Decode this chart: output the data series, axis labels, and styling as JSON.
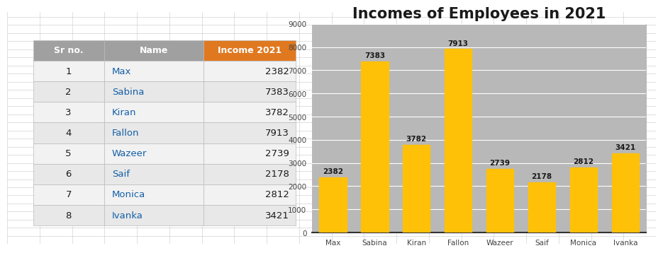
{
  "title": "Incomes of Employees in 2021",
  "names": [
    "Max",
    "Sabina",
    "Kiran",
    "Fallon",
    "Wazeer",
    "Saif",
    "Monica",
    "Ivanka"
  ],
  "sr_nos": [
    1,
    2,
    3,
    4,
    5,
    6,
    7,
    8
  ],
  "incomes": [
    2382,
    7383,
    3782,
    7913,
    2739,
    2178,
    2812,
    3421
  ],
  "bar_color": "#FFC107",
  "title_fontsize": 15,
  "title_color": "#1a1a1a",
  "ylim": [
    0,
    9000
  ],
  "yticks": [
    0,
    1000,
    2000,
    3000,
    4000,
    5000,
    6000,
    7000,
    8000,
    9000
  ],
  "table_header_bg_sr": "#A0A0A0",
  "table_header_bg_name": "#A0A0A0",
  "table_header_bg_income": "#E07820",
  "table_header_text": "#ffffff",
  "table_row_bg_odd": "#F2F2F2",
  "table_row_bg_even": "#E8E8E8",
  "table_text_color": "#1a1a1a",
  "table_name_color": "#1460a8",
  "outer_bg": "#ffffff",
  "grid_line_color": "#c8c8c8",
  "chart_bg_light": "#e8e8e8",
  "chart_bg_dark": "#b8b8b8",
  "label_value_color": "#1a1a1a",
  "axis_text_color": "#444444"
}
